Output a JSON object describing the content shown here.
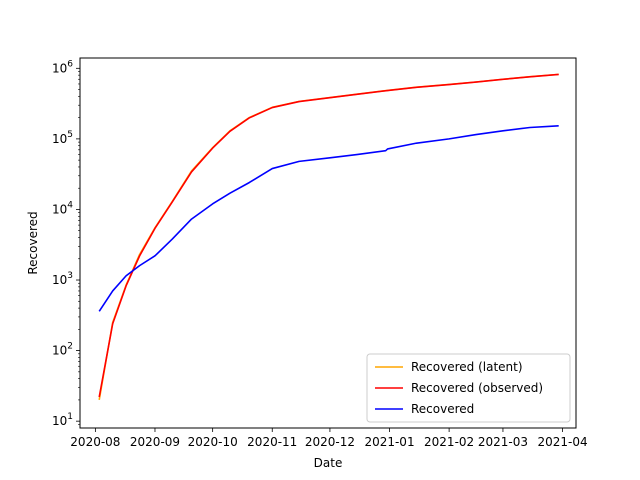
{
  "chart_data": {
    "type": "line",
    "title": "",
    "xlabel": "Date",
    "ylabel": "Recovered",
    "yscale": "log",
    "ylim": [
      8,
      1400000
    ],
    "xlim": [
      "2020-07-24",
      "2021-04-08"
    ],
    "x_ticks": [
      "2020-08",
      "2020-09",
      "2020-10",
      "2020-11",
      "2020-12",
      "2021-01",
      "2021-02",
      "2021-03",
      "2021-04"
    ],
    "y_ticks": [
      {
        "value": 10,
        "base": "10",
        "exp": "1"
      },
      {
        "value": 100,
        "base": "10",
        "exp": "2"
      },
      {
        "value": 1000,
        "base": "10",
        "exp": "3"
      },
      {
        "value": 10000,
        "base": "10",
        "exp": "4"
      },
      {
        "value": 100000,
        "base": "10",
        "exp": "5"
      },
      {
        "value": 1000000,
        "base": "10",
        "exp": "6"
      }
    ],
    "grid": false,
    "legend_position": "lower-right",
    "series": [
      {
        "name": "Recovered (latent)",
        "color": "#ffa500",
        "points": [
          [
            "2020-08-03",
            20
          ],
          [
            "2020-08-10",
            250
          ],
          [
            "2020-08-17",
            850
          ],
          [
            "2020-08-24",
            2300
          ],
          [
            "2020-09-01",
            5500
          ],
          [
            "2020-09-10",
            13000
          ],
          [
            "2020-09-20",
            35000
          ],
          [
            "2020-10-01",
            75000
          ],
          [
            "2020-10-10",
            130000
          ],
          [
            "2020-10-20",
            200000
          ],
          [
            "2020-11-01",
            280000
          ],
          [
            "2020-11-15",
            340000
          ],
          [
            "2020-12-01",
            385000
          ],
          [
            "2020-12-15",
            430000
          ],
          [
            "2021-01-01",
            490000
          ],
          [
            "2021-01-15",
            540000
          ],
          [
            "2021-02-01",
            590000
          ],
          [
            "2021-02-15",
            640000
          ],
          [
            "2021-03-01",
            700000
          ],
          [
            "2021-03-15",
            760000
          ],
          [
            "2021-03-30",
            820000
          ]
        ]
      },
      {
        "name": "Recovered (observed)",
        "color": "#ff0000",
        "points": [
          [
            "2020-08-03",
            22
          ],
          [
            "2020-08-10",
            240
          ],
          [
            "2020-08-17",
            830
          ],
          [
            "2020-08-24",
            2200
          ],
          [
            "2020-09-01",
            5400
          ],
          [
            "2020-09-10",
            12800
          ],
          [
            "2020-09-20",
            34000
          ],
          [
            "2020-10-01",
            74000
          ],
          [
            "2020-10-10",
            128000
          ],
          [
            "2020-10-20",
            198000
          ],
          [
            "2020-11-01",
            278000
          ],
          [
            "2020-11-15",
            338000
          ],
          [
            "2020-12-01",
            383000
          ],
          [
            "2020-12-15",
            428000
          ],
          [
            "2021-01-01",
            488000
          ],
          [
            "2021-01-15",
            538000
          ],
          [
            "2021-02-01",
            588000
          ],
          [
            "2021-02-15",
            638000
          ],
          [
            "2021-03-01",
            698000
          ],
          [
            "2021-03-15",
            758000
          ],
          [
            "2021-03-30",
            818000
          ]
        ]
      },
      {
        "name": "Recovered",
        "color": "#0000ff",
        "points": [
          [
            "2020-08-03",
            360
          ],
          [
            "2020-08-10",
            700
          ],
          [
            "2020-08-17",
            1150
          ],
          [
            "2020-08-24",
            1600
          ],
          [
            "2020-09-01",
            2200
          ],
          [
            "2020-09-10",
            3800
          ],
          [
            "2020-09-20",
            7300
          ],
          [
            "2020-10-01",
            12000
          ],
          [
            "2020-10-10",
            17000
          ],
          [
            "2020-10-20",
            24000
          ],
          [
            "2020-11-01",
            38000
          ],
          [
            "2020-11-15",
            48000
          ],
          [
            "2020-12-01",
            54000
          ],
          [
            "2020-12-15",
            60000
          ],
          [
            "2020-12-30",
            68000
          ],
          [
            "2020-12-31",
            72000
          ],
          [
            "2021-01-15",
            87000
          ],
          [
            "2021-02-01",
            100000
          ],
          [
            "2021-02-15",
            115000
          ],
          [
            "2021-03-01",
            130000
          ],
          [
            "2021-03-15",
            145000
          ],
          [
            "2021-03-30",
            153000
          ]
        ]
      }
    ]
  }
}
